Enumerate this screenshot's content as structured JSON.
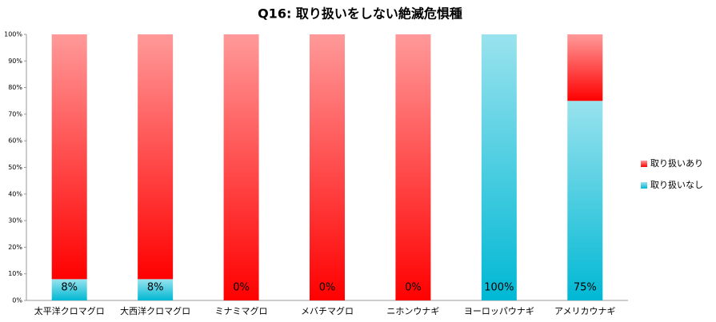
{
  "chart_data": {
    "type": "stacked_bar_100",
    "title": "Q16: 取り扱いをしない絶滅危惧種",
    "categories": [
      "太平洋クロマグロ",
      "大西洋クロマグロ",
      "ミナミマグロ",
      "メバチマグロ",
      "ニホンウナギ",
      "ヨーロッパウナギ",
      "アメリカウナギ"
    ],
    "series": [
      {
        "name": "取り扱いなし",
        "color": "#00b8d4",
        "values": [
          8,
          8,
          0,
          0,
          0,
          100,
          75
        ],
        "value_labels": [
          "8%",
          "8%",
          "0%",
          "0%",
          "0%",
          "100%",
          "75%"
        ]
      },
      {
        "name": "取り扱いあり",
        "color": "#ff0000",
        "values": [
          92,
          92,
          100,
          100,
          100,
          0,
          25
        ]
      }
    ],
    "ylim": [
      0,
      100
    ],
    "yticks": [
      {
        "value": 0,
        "label": "0%"
      },
      {
        "value": 10,
        "label": "10%"
      },
      {
        "value": 20,
        "label": "20%"
      },
      {
        "value": 30,
        "label": "30%"
      },
      {
        "value": 40,
        "label": "40%"
      },
      {
        "value": 50,
        "label": "50%"
      },
      {
        "value": 60,
        "label": "60%"
      },
      {
        "value": 70,
        "label": "70%"
      },
      {
        "value": 80,
        "label": "80%"
      },
      {
        "value": 90,
        "label": "90%"
      },
      {
        "value": 100,
        "label": "100%"
      }
    ],
    "legend": "right",
    "grid": false
  }
}
